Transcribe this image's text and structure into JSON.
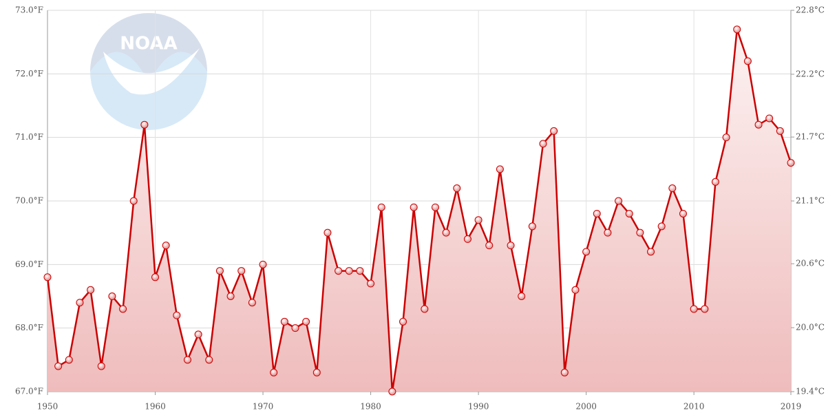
{
  "chart_data": {
    "type": "area-line",
    "watermark_text": "NOAA",
    "x": [
      1950,
      1951,
      1952,
      1953,
      1954,
      1955,
      1956,
      1957,
      1958,
      1959,
      1960,
      1961,
      1962,
      1963,
      1964,
      1965,
      1966,
      1967,
      1968,
      1969,
      1970,
      1971,
      1972,
      1973,
      1974,
      1975,
      1976,
      1977,
      1978,
      1979,
      1980,
      1981,
      1982,
      1983,
      1984,
      1985,
      1986,
      1987,
      1988,
      1989,
      1990,
      1991,
      1992,
      1993,
      1994,
      1995,
      1996,
      1997,
      1998,
      1999,
      2000,
      2001,
      2002,
      2003,
      2004,
      2005,
      2006,
      2007,
      2008,
      2009,
      2010,
      2011,
      2012,
      2013,
      2014,
      2015,
      2016,
      2017,
      2018,
      2019
    ],
    "values": [
      68.8,
      67.4,
      67.5,
      68.4,
      68.6,
      67.4,
      68.5,
      68.3,
      70.0,
      71.2,
      68.8,
      69.3,
      68.2,
      67.5,
      67.9,
      67.5,
      68.9,
      68.5,
      68.9,
      68.4,
      69.0,
      67.3,
      68.1,
      68.0,
      68.1,
      67.3,
      69.5,
      68.9,
      68.9,
      68.9,
      68.7,
      69.9,
      67.0,
      68.1,
      69.9,
      68.3,
      69.9,
      69.5,
      70.2,
      69.4,
      69.7,
      69.3,
      70.5,
      69.3,
      68.5,
      69.6,
      70.9,
      71.1,
      67.3,
      68.6,
      69.2,
      69.8,
      69.5,
      70.0,
      69.8,
      69.5,
      69.2,
      69.6,
      70.2,
      69.8,
      68.3,
      68.3,
      70.3,
      71.0,
      72.7,
      72.2,
      71.2,
      71.3,
      71.1,
      70.6
    ],
    "color": "#cc0000",
    "xlim": [
      1950,
      2019
    ],
    "xticks": [
      1950,
      1960,
      1970,
      1980,
      1990,
      2000,
      2010,
      2019
    ],
    "ylim": [
      67,
      73
    ],
    "yticks": [
      {
        "value": 67,
        "label": "67.0°F"
      },
      {
        "value": 68,
        "label": "68.0°F"
      },
      {
        "value": 69,
        "label": "69.0°F"
      },
      {
        "value": 70,
        "label": "70.0°F"
      },
      {
        "value": 71,
        "label": "71.0°F"
      },
      {
        "value": 72,
        "label": "72.0°F"
      },
      {
        "value": 73,
        "label": "73.0°F"
      }
    ],
    "y2lim": [
      19.44,
      22.78
    ],
    "y2ticks": [
      {
        "value": 19.44,
        "label": "19.4°C"
      },
      {
        "value": 20.0,
        "label": "20.0°C"
      },
      {
        "value": 20.56,
        "label": "20.6°C"
      },
      {
        "value": 21.11,
        "label": "21.1°C"
      },
      {
        "value": 21.67,
        "label": "21.7°C"
      },
      {
        "value": 22.22,
        "label": "22.2°C"
      },
      {
        "value": 22.78,
        "label": "22.8°C"
      }
    ],
    "grid": true
  }
}
